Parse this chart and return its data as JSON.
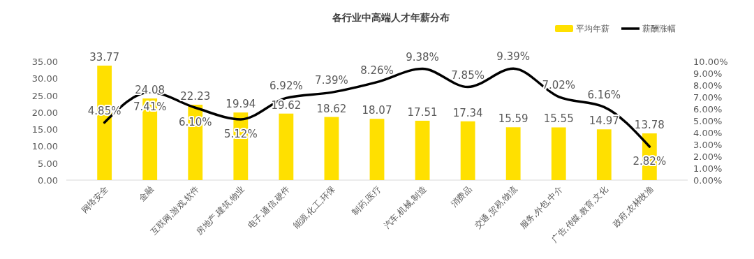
{
  "chart_data": {
    "type": "bar",
    "title": "各行业中高端人才年薪分布",
    "categories": [
      "网络安全",
      "金融",
      "互联网,游戏,软件",
      "房地产,建筑,物业",
      "电子,通信,硬件",
      "能源,化工,环保",
      "制药,医疗",
      "汽车,机械,制造",
      "消费品",
      "交通,贸易,物流",
      "服务,外包,中介",
      "广告,传媒,教育,文化",
      "政府,农林牧渔"
    ],
    "series": [
      {
        "name": "平均年薪",
        "color": "#ffe000",
        "values": [
          33.77,
          24.08,
          22.23,
          19.94,
          19.62,
          18.62,
          18.07,
          17.51,
          17.34,
          15.59,
          15.55,
          14.97,
          13.78
        ],
        "value_labels": [
          "33.77",
          "24.08",
          "22.23",
          "19.94",
          "19.62",
          "18.62",
          "18.07",
          "17.51",
          "17.34",
          "15.59",
          "15.55",
          "14.97",
          "13.78"
        ]
      },
      {
        "name": "薪酬涨幅",
        "type": "line",
        "axis": "y2",
        "color": "#000000",
        "values": [
          4.85,
          7.41,
          6.1,
          5.12,
          6.92,
          7.39,
          8.26,
          9.38,
          7.85,
          9.39,
          7.02,
          6.16,
          2.82
        ],
        "value_labels": [
          "4.85%",
          "7.41%",
          "6.10%",
          "5.12%",
          "6.92%",
          "7.39%",
          "8.26%",
          "9.38%",
          "7.85%",
          "9.39%",
          "7.02%",
          "6.16%",
          "2.82%"
        ]
      }
    ],
    "ylim": [
      0,
      35
    ],
    "yticks": [
      {
        "value": 0,
        "label": "0.00"
      },
      {
        "value": 5,
        "label": "5.00"
      },
      {
        "value": 10,
        "label": "10.00"
      },
      {
        "value": 15,
        "label": "15.00"
      },
      {
        "value": 20,
        "label": "20.00"
      },
      {
        "value": 25,
        "label": "25.00"
      },
      {
        "value": 30,
        "label": "30.00"
      },
      {
        "value": 35,
        "label": "35.00"
      }
    ],
    "y2lim": [
      0,
      10
    ],
    "y2ticks": [
      {
        "value": 0,
        "label": "0.00%"
      },
      {
        "value": 1,
        "label": "1.00%"
      },
      {
        "value": 2,
        "label": "2.00%"
      },
      {
        "value": 3,
        "label": "3.00%"
      },
      {
        "value": 4,
        "label": "4.00%"
      },
      {
        "value": 5,
        "label": "5.00%"
      },
      {
        "value": 6,
        "label": "6.00%"
      },
      {
        "value": 7,
        "label": "7.00%"
      },
      {
        "value": 8,
        "label": "8.00%"
      },
      {
        "value": 9,
        "label": "9.00%"
      },
      {
        "value": 10,
        "label": "10.00%"
      }
    ],
    "legend": "top right",
    "grid": false,
    "marker": "none",
    "line_style": "solid"
  }
}
